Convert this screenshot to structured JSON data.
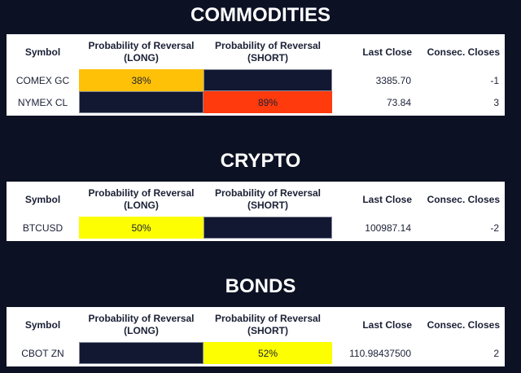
{
  "colors": {
    "page_bg": "#0c1124",
    "table_bg": "#ffffff",
    "text_dark": "#1a2035",
    "title_text": "#ffffff",
    "empty_cell": "#121831",
    "empty_cell_border": "#82879a",
    "amber": "#ffc107",
    "red": "#ff3b0e",
    "yellow": "#fdfe02"
  },
  "header": {
    "symbol": "Symbol",
    "prob_title": "Probability of Reversal",
    "long_sub": "(LONG)",
    "short_sub": "(SHORT)",
    "last_close": "Last Close",
    "consec": "Consec. Closes"
  },
  "sections": [
    {
      "title": "COMMODITIES",
      "rows": [
        {
          "symbol": "COMEX GC",
          "long_label": "38%",
          "long_bg": "#ffc107",
          "short_label": "",
          "short_bg": "#121831",
          "last_close": "3385.70",
          "consec": "-1"
        },
        {
          "symbol": "NYMEX CL",
          "long_label": "",
          "long_bg": "#121831",
          "short_label": "89%",
          "short_bg": "#ff3b0e",
          "last_close": "73.84",
          "consec": "3"
        }
      ]
    },
    {
      "title": "CRYPTO",
      "rows": [
        {
          "symbol": "BTCUSD",
          "long_label": "50%",
          "long_bg": "#fdfe02",
          "short_label": "",
          "short_bg": "#121831",
          "last_close": "100987.14",
          "consec": "-2"
        }
      ]
    },
    {
      "title": "BONDS",
      "rows": [
        {
          "symbol": "CBOT ZN",
          "long_label": "",
          "long_bg": "#121831",
          "short_label": "52%",
          "short_bg": "#fdfe02",
          "last_close": "110.98437500",
          "consec": "2"
        }
      ]
    }
  ]
}
